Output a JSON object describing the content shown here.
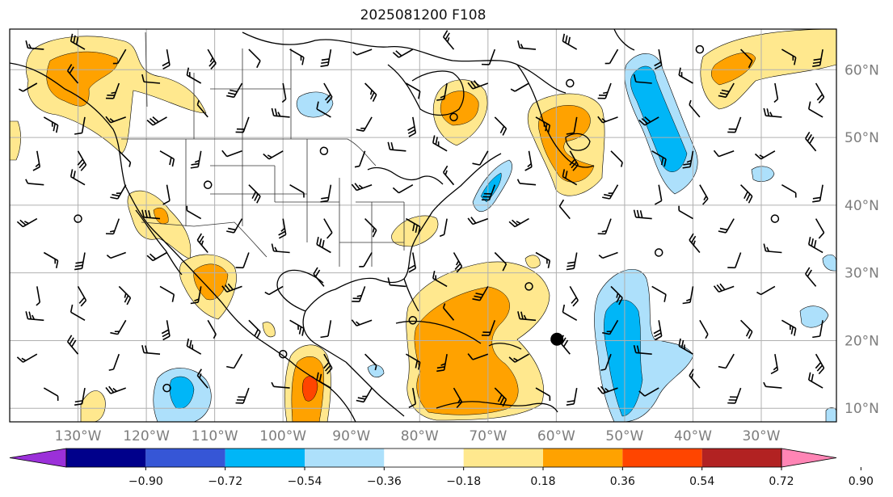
{
  "title": "2025081200 F108",
  "map": {
    "lon_range": [
      -140,
      -19
    ],
    "lat_range": [
      8,
      66
    ],
    "meridians": [
      -130,
      -120,
      -110,
      -100,
      -90,
      -80,
      -70,
      -60,
      -50,
      -40,
      -30
    ],
    "parallels": [
      60,
      50,
      40,
      30,
      20,
      10
    ],
    "lon_labels": [
      "130°W",
      "120°W",
      "110°W",
      "100°W",
      "90°W",
      "80°W",
      "70°W",
      "60°W",
      "50°W",
      "40°W",
      "30°W"
    ],
    "lat_labels": [
      "60°N",
      "50°N",
      "40°N",
      "30°N",
      "20°N",
      "10°N"
    ],
    "storm_marker": {
      "lon": -59.9,
      "lat": 20.2
    },
    "grid": true
  },
  "colorbar": {
    "ticks": [
      "−0.90",
      "−0.72",
      "−0.54",
      "−0.36",
      "−0.18",
      "0.18",
      "0.36",
      "0.54",
      "0.72",
      "0.90"
    ],
    "colors": [
      "#9b30d9",
      "#00008b",
      "#3656d6",
      "#00b6f7",
      "#ade0fb",
      "#ffffff",
      "#ffe88e",
      "#ffa200",
      "#ff4500",
      "#b22222",
      "#ff85b5"
    ],
    "extend": "both"
  },
  "colors": {
    "land_line": "#000000",
    "grid": "#b0b0b0",
    "barb": "#000000",
    "state_line": "#333333"
  },
  "anomaly_regions": [
    {
      "name": "alaska-west-canada",
      "sign": "positive"
    },
    {
      "name": "hudson-bay",
      "sign": "positive"
    },
    {
      "name": "quebec-maritimes",
      "sign": "positive"
    },
    {
      "name": "north-atlantic-mid",
      "sign": "negative"
    },
    {
      "name": "north-atlantic-east",
      "sign": "positive"
    },
    {
      "name": "mexico-west",
      "sign": "positive"
    },
    {
      "name": "caribbean",
      "sign": "positive"
    },
    {
      "name": "central-america",
      "sign": "positive"
    },
    {
      "name": "east-pacific",
      "sign": "negative"
    },
    {
      "name": "tropical-atlantic",
      "sign": "negative"
    },
    {
      "name": "gulf-stream",
      "sign": "negative"
    }
  ]
}
